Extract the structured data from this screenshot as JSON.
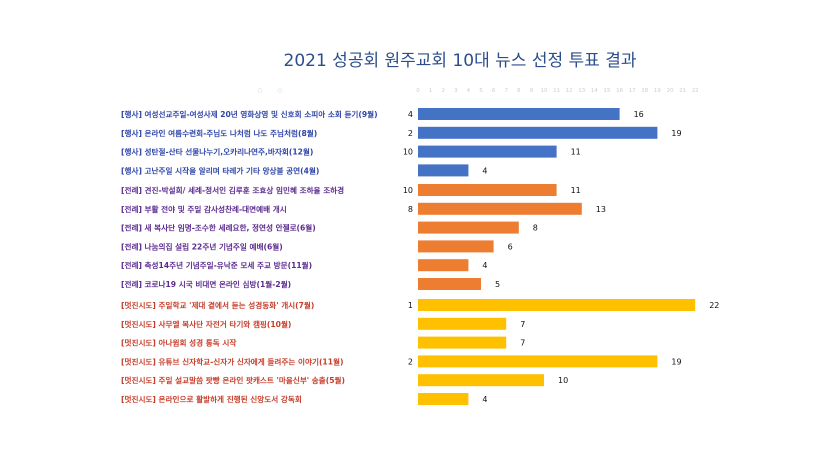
{
  "chart_data": {
    "type": "bar",
    "orientation": "horizontal",
    "title": "2021 성공회 원주교회 10대 뉴스 선정 투표 결과",
    "xlabel": "",
    "ylabel": "",
    "xlim": [
      0,
      22
    ],
    "x_ticks": [
      "0",
      "1",
      "2",
      "3",
      "4",
      "5",
      "6",
      "7",
      "8",
      "9",
      "10",
      "11",
      "12",
      "13",
      "14",
      "15",
      "16",
      "17",
      "18",
      "19",
      "20",
      "21",
      "22"
    ],
    "groups": [
      {
        "color": "#4472c4",
        "label_color": "#2f45a8",
        "items": [
          {
            "label": "[행사] 여성선교주일-여성사제 20년 영화상영 및 신호회 소피아 소회 듣기(9월)",
            "rank": "4",
            "value": 16
          },
          {
            "label": "[행사] 온라인 여름수련회-주님도 나처럼 나도 주님처럼(8월)",
            "rank": "2",
            "value": 19
          },
          {
            "label": "[행사] 성탄절-산타 선물나누기,오카리나연주,바자회(12월)",
            "rank": "10",
            "value": 11
          },
          {
            "label": "[행사] 고난주일 시작을 알리며 타레가 기타 앙상블 공연(4월)",
            "rank": "",
            "value": 4
          }
        ]
      },
      {
        "color": "#ed7d31",
        "label_color": "#5b2b8e",
        "items": [
          {
            "label": "[전례] 견진-박설희/ 세례-정서인 김루훈 조효상 임민혜 조하율 조하경",
            "rank": "10",
            "value": 11
          },
          {
            "label": "[전례] 부활 전야 및 주일 감사성찬례-대면예배 개시",
            "rank": "8",
            "value": 13
          },
          {
            "label": "[전례] 새 복사단 임명-조수한 세례요한, 정연성 안젤로(6월)",
            "rank": "",
            "value": 8
          },
          {
            "label": "[전례] 나눔의집 설립 22주년 기념주일 예배(6월)",
            "rank": "",
            "value": 6
          },
          {
            "label": "[전례] 축성14주년 기념주일-유낙준 모세 주교 방문(11월)",
            "rank": "",
            "value": 4
          },
          {
            "label": "[전례] 코로나19 시국 비대면 온라인 심방(1월-2월)",
            "rank": "",
            "value": 5
          }
        ]
      },
      {
        "color": "#ffc000",
        "label_color": "#c63d2a",
        "items": [
          {
            "label": "[멋진시도] 주일학교 '제대 곁에서 듣는 성경동화' 개시(7월)",
            "rank": "1",
            "value": 22
          },
          {
            "label": "[멋진시도] 사무엘 복사단 자전거 타기와 캠핑(10월)",
            "rank": "",
            "value": 7
          },
          {
            "label": "[멋진시도] 아나윔회 성경 통독 시작",
            "rank": "",
            "value": 7
          },
          {
            "label": "[멋진시도] 유튜브 신자학교-신자가 신자에게 들려주는 이야기(11월)",
            "rank": "2",
            "value": 19
          },
          {
            "label": "[멋진시도] 주일 설교말씀 팟빵 온라인 팟캐스트 '마을신부' 송출(5월)",
            "rank": "",
            "value": 10
          },
          {
            "label": "[멋진시도] 온라인으로 활발하게 진행된 신앙도서 강독회",
            "rank": "",
            "value": 4
          }
        ]
      }
    ]
  }
}
